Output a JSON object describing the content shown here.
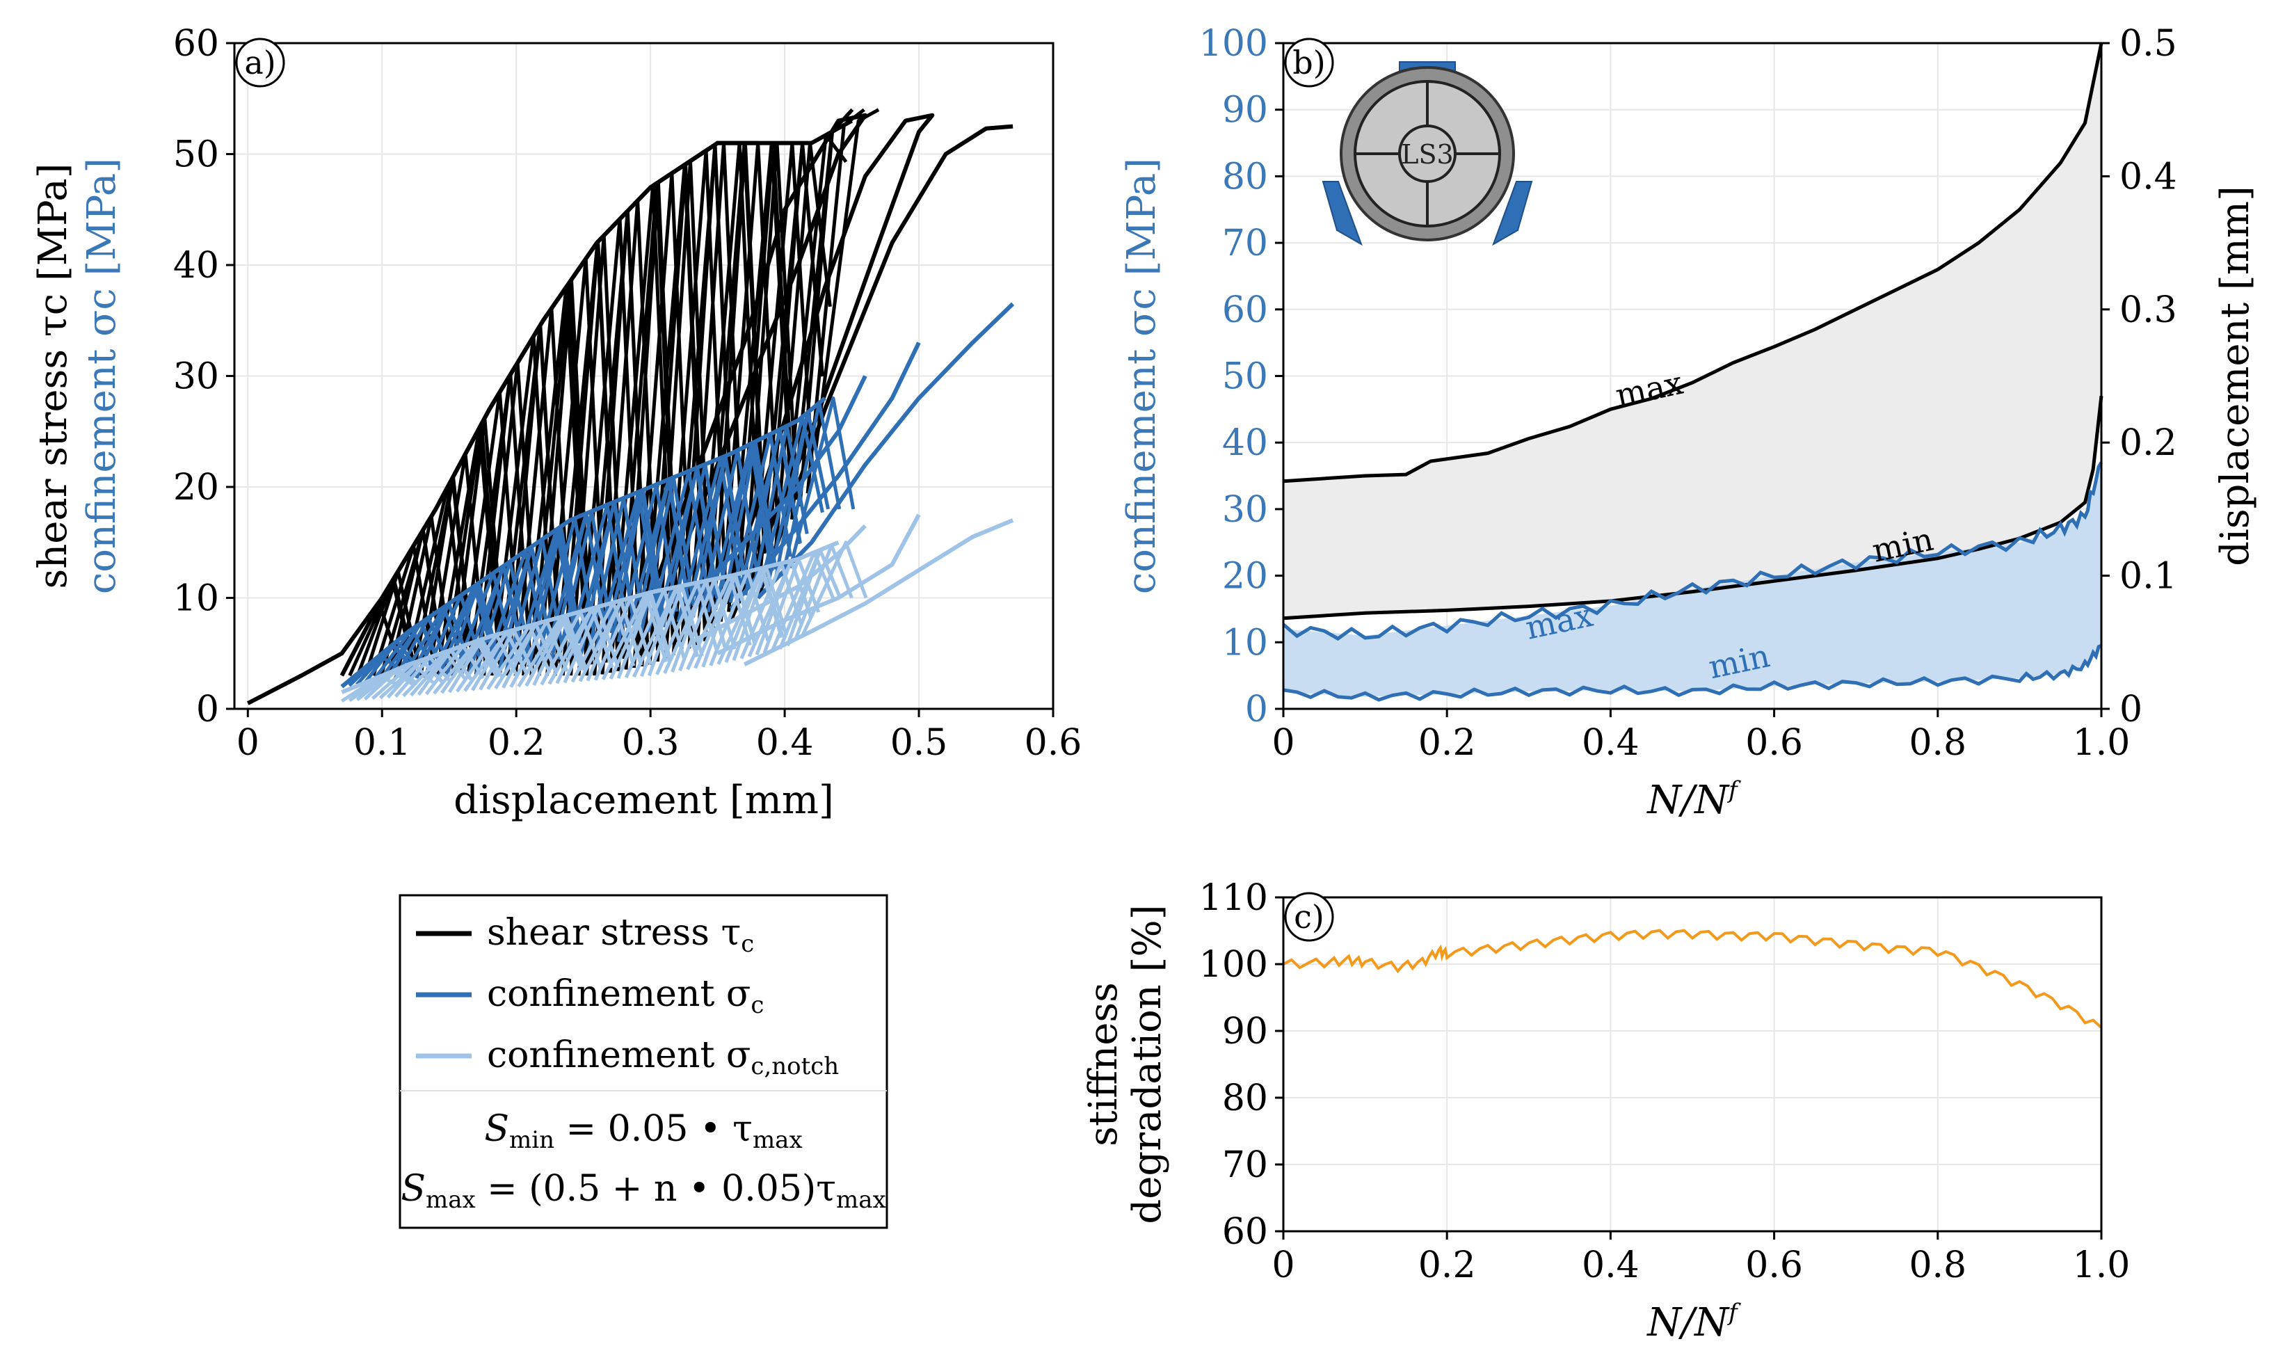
{
  "chart_data": [
    {
      "id": "a",
      "type": "line",
      "panel_label": "a)",
      "xlabel": "displacement [mm]",
      "ylabel_black": "shear stress τc [MPa]",
      "ylabel_blue": "confinement σc [MPa]",
      "xlim": [
        -0.01,
        0.6
      ],
      "ylim": [
        0,
        60
      ],
      "xticks": [
        0,
        0.1,
        0.2,
        0.3,
        0.4,
        0.5,
        0.6
      ],
      "xtick_labels": [
        "0",
        "0.1",
        "0.2",
        "0.3",
        "0.4",
        "0.5",
        "0.6"
      ],
      "yticks": [
        0,
        10,
        20,
        30,
        40,
        50,
        60
      ],
      "ytick_labels": [
        "0",
        "10",
        "20",
        "30",
        "40",
        "50",
        "60"
      ],
      "grid": true,
      "series": [
        {
          "name": "shear stress τc",
          "color": "#000000",
          "envelope_loading": [
            [
              0,
              0.5
            ],
            [
              0.04,
              3
            ],
            [
              0.07,
              5
            ],
            [
              0.1,
              10
            ],
            [
              0.14,
              18
            ],
            [
              0.18,
              27
            ],
            [
              0.22,
              35
            ],
            [
              0.26,
              42
            ],
            [
              0.3,
              47
            ],
            [
              0.35,
              51
            ],
            [
              0.38,
              51
            ]
          ],
          "cycle_upper": [
            [
              0.07,
              3
            ],
            [
              0.1,
              10
            ],
            [
              0.14,
              18
            ],
            [
              0.18,
              27
            ],
            [
              0.22,
              35
            ],
            [
              0.26,
              42
            ],
            [
              0.3,
              47
            ],
            [
              0.35,
              51
            ],
            [
              0.42,
              51
            ],
            [
              0.45,
              53
            ]
          ],
          "cycle_lower": [
            [
              0.07,
              3
            ],
            [
              0.12,
              3
            ],
            [
              0.17,
              3
            ],
            [
              0.22,
              3
            ],
            [
              0.26,
              3
            ],
            [
              0.3,
              4
            ],
            [
              0.34,
              6
            ],
            [
              0.38,
              12
            ],
            [
              0.42,
              20
            ],
            [
              0.45,
              53
            ]
          ],
          "final_curves": [
            [
              [
                0.31,
                10
              ],
              [
                0.36,
                25
              ],
              [
                0.41,
                40
              ],
              [
                0.44,
                50
              ],
              [
                0.46,
                53.5
              ],
              [
                0.44,
                53
              ],
              [
                0.4,
                45
              ],
              [
                0.37,
                33
              ],
              [
                0.33,
                20
              ],
              [
                0.3,
                10
              ]
            ],
            [
              [
                0.36,
                8
              ],
              [
                0.42,
                25
              ],
              [
                0.47,
                42
              ],
              [
                0.5,
                52
              ],
              [
                0.51,
                53.5
              ],
              [
                0.49,
                53
              ],
              [
                0.46,
                48
              ],
              [
                0.43,
                38
              ],
              [
                0.39,
                22
              ],
              [
                0.35,
                8
              ]
            ],
            [
              [
                0.38,
                10
              ],
              [
                0.43,
                27
              ],
              [
                0.48,
                42
              ],
              [
                0.52,
                50
              ],
              [
                0.55,
                52.3
              ],
              [
                0.57,
                52.5
              ]
            ]
          ]
        },
        {
          "name": "confinement σc",
          "color": "#2e6fb6",
          "cycle_upper": [
            [
              0.07,
              2
            ],
            [
              0.12,
              7
            ],
            [
              0.18,
              12
            ],
            [
              0.24,
              17
            ],
            [
              0.3,
              20
            ],
            [
              0.36,
              23
            ],
            [
              0.41,
              26
            ],
            [
              0.43,
              28
            ]
          ],
          "cycle_lower": [
            [
              0.07,
              2
            ],
            [
              0.1,
              2.5
            ],
            [
              0.15,
              3
            ],
            [
              0.2,
              3.5
            ],
            [
              0.25,
              5
            ],
            [
              0.3,
              7
            ],
            [
              0.35,
              9
            ],
            [
              0.4,
              12
            ],
            [
              0.43,
              17
            ]
          ],
          "final_curves": [
            [
              [
                0.33,
                10
              ],
              [
                0.37,
                15
              ],
              [
                0.41,
                20
              ],
              [
                0.44,
                25
              ],
              [
                0.46,
                30
              ]
            ],
            [
              [
                0.36,
                9
              ],
              [
                0.4,
                15
              ],
              [
                0.44,
                21
              ],
              [
                0.48,
                28
              ],
              [
                0.5,
                33
              ]
            ],
            [
              [
                0.38,
                10
              ],
              [
                0.42,
                15
              ],
              [
                0.46,
                22
              ],
              [
                0.5,
                28
              ],
              [
                0.54,
                33
              ],
              [
                0.57,
                36.5
              ]
            ]
          ]
        },
        {
          "name": "confinement σc,notch",
          "color": "#9fc3e7",
          "cycle_upper": [
            [
              0.07,
              1.5
            ],
            [
              0.12,
              4
            ],
            [
              0.18,
              6.5
            ],
            [
              0.24,
              8.5
            ],
            [
              0.3,
              10.5
            ],
            [
              0.36,
              12
            ],
            [
              0.41,
              13.5
            ],
            [
              0.44,
              15
            ]
          ],
          "cycle_lower": [
            [
              0.05,
              0.5
            ],
            [
              0.1,
              1
            ],
            [
              0.15,
              1.5
            ],
            [
              0.2,
              2
            ],
            [
              0.25,
              2.5
            ],
            [
              0.3,
              3
            ],
            [
              0.35,
              4
            ],
            [
              0.4,
              5.5
            ],
            [
              0.44,
              9
            ]
          ],
          "final_curves": [
            [
              [
                0.33,
                6
              ],
              [
                0.37,
                8.5
              ],
              [
                0.41,
                11
              ],
              [
                0.44,
                14
              ],
              [
                0.46,
                16.5
              ]
            ],
            [
              [
                0.35,
                5
              ],
              [
                0.4,
                8
              ],
              [
                0.44,
                10
              ],
              [
                0.48,
                13
              ],
              [
                0.5,
                17.5
              ]
            ],
            [
              [
                0.37,
                4
              ],
              [
                0.42,
                7
              ],
              [
                0.46,
                9.5
              ],
              [
                0.5,
                12.5
              ],
              [
                0.54,
                15.5
              ],
              [
                0.57,
                17
              ]
            ]
          ]
        }
      ]
    },
    {
      "id": "b",
      "type": "area",
      "panel_label": "b)",
      "xlabel_main": "N/N",
      "xlabel_sup": "f",
      "ylabel_left": "confinement σc [MPa]",
      "ylabel_right": "displacement [mm]",
      "xlim": [
        0,
        1
      ],
      "ylim_left": [
        0,
        100
      ],
      "ylim_right": [
        0,
        0.5
      ],
      "xticks": [
        0,
        0.2,
        0.4,
        0.6,
        0.8,
        1.0
      ],
      "xtick_labels": [
        "0",
        "0.2",
        "0.4",
        "0.6",
        "0.8",
        "1.0"
      ],
      "yticks_left": [
        0,
        10,
        20,
        30,
        40,
        50,
        60,
        70,
        80,
        90,
        100
      ],
      "ytick_labels_left": [
        "0",
        "10",
        "20",
        "30",
        "40",
        "50",
        "60",
        "70",
        "80",
        "90",
        "100"
      ],
      "yticks_right": [
        0,
        0.1,
        0.2,
        0.3,
        0.4,
        0.5
      ],
      "ytick_labels_right": [
        "0",
        "0.1",
        "0.2",
        "0.3",
        "0.4",
        "0.5"
      ],
      "grid": true,
      "inset_label": "LS3",
      "series": [
        {
          "name": "displacement max",
          "label": "max",
          "axis": "right",
          "color": "#000000",
          "x": [
            0,
            0.1,
            0.15,
            0.18,
            0.25,
            0.3,
            0.35,
            0.4,
            0.45,
            0.5,
            0.55,
            0.6,
            0.65,
            0.7,
            0.75,
            0.8,
            0.85,
            0.9,
            0.95,
            0.98,
            1.0
          ],
          "values": [
            0.171,
            0.175,
            0.176,
            0.186,
            0.192,
            0.203,
            0.212,
            0.225,
            0.233,
            0.245,
            0.26,
            0.272,
            0.285,
            0.3,
            0.315,
            0.33,
            0.35,
            0.375,
            0.41,
            0.44,
            0.5
          ]
        },
        {
          "name": "displacement min",
          "label": "min",
          "axis": "right",
          "color": "#000000",
          "x": [
            0,
            0.1,
            0.2,
            0.3,
            0.4,
            0.5,
            0.6,
            0.7,
            0.8,
            0.85,
            0.9,
            0.95,
            0.98,
            0.99,
            1.0
          ],
          "values": [
            0.068,
            0.072,
            0.074,
            0.077,
            0.081,
            0.088,
            0.096,
            0.104,
            0.113,
            0.12,
            0.128,
            0.14,
            0.155,
            0.18,
            0.235
          ]
        },
        {
          "name": "confinement max",
          "label": "max",
          "axis": "left",
          "color": "#2e6fb6",
          "x": [
            0,
            0.1,
            0.2,
            0.3,
            0.4,
            0.5,
            0.6,
            0.7,
            0.8,
            0.9,
            0.95,
            0.98,
            1.0
          ],
          "values": [
            12,
            11,
            12.5,
            14,
            15.5,
            18,
            20,
            22,
            23.5,
            25,
            27,
            29,
            37
          ]
        },
        {
          "name": "confinement min",
          "label": "min",
          "axis": "left",
          "color": "#2e6fb6",
          "x": [
            0,
            0.1,
            0.2,
            0.3,
            0.4,
            0.5,
            0.6,
            0.7,
            0.8,
            0.9,
            0.95,
            0.98,
            1.0
          ],
          "values": [
            2.5,
            1.8,
            2.2,
            2.6,
            2.8,
            2.6,
            3.4,
            3.8,
            4.1,
            4.6,
            5.2,
            6.5,
            9.5
          ]
        }
      ],
      "annotations": [
        {
          "text": "max",
          "color": "#000000",
          "x": 0.45,
          "y_right": 0.232
        },
        {
          "text": "min",
          "color": "#000000",
          "x": 0.76,
          "y_right": 0.115
        },
        {
          "text": "max",
          "color": "#2e6fb6",
          "x": 0.34,
          "y_left": 11.5
        },
        {
          "text": "min",
          "color": "#2e6fb6",
          "x": 0.56,
          "y_left": 5.5
        }
      ]
    },
    {
      "id": "c",
      "type": "line",
      "panel_label": "c)",
      "xlabel_main": "N/N",
      "xlabel_sup": "f",
      "ylabel_line1": "stiffness",
      "ylabel_line2": "degradation [%]",
      "xlim": [
        0,
        1
      ],
      "ylim": [
        60,
        110
      ],
      "xticks": [
        0,
        0.2,
        0.4,
        0.6,
        0.8,
        1.0
      ],
      "xtick_labels": [
        "0",
        "0.2",
        "0.4",
        "0.6",
        "0.8",
        "1.0"
      ],
      "yticks": [
        60,
        70,
        80,
        90,
        100,
        110
      ],
      "ytick_labels": [
        "60",
        "70",
        "80",
        "90",
        "100",
        "110"
      ],
      "grid": true,
      "series": [
        {
          "name": "stiffness degradation",
          "color": "#f39a1c",
          "x": [
            0,
            0.05,
            0.08,
            0.1,
            0.14,
            0.17,
            0.19,
            0.2,
            0.25,
            0.3,
            0.35,
            0.4,
            0.45,
            0.5,
            0.55,
            0.6,
            0.65,
            0.7,
            0.75,
            0.8,
            0.85,
            0.9,
            0.95,
            1.0
          ],
          "values": [
            100,
            100.2,
            100.6,
            100.3,
            99.6,
            100.3,
            102,
            101.6,
            102.3,
            103,
            103.7,
            104.3,
            104.6,
            104.6,
            104.3,
            104.3,
            103.6,
            103,
            102.3,
            102,
            99.6,
            97,
            94,
            90.5
          ]
        }
      ]
    }
  ],
  "legend": {
    "entries": [
      {
        "text": "shear stress  τ",
        "sub": "c",
        "color": "#000000"
      },
      {
        "text": "confinement  σ",
        "sub": "c",
        "color": "#2e6fb6"
      },
      {
        "text": "confinement  σ",
        "sub": "c,notch",
        "color": "#9fc3e7"
      }
    ],
    "formula1": {
      "lhs": "S",
      "lhs_sub": "min",
      "rhs": " = 0.05 • τ",
      "rhs_sub": "max"
    },
    "formula2": {
      "lhs": "S",
      "lhs_sub": "max",
      "rhs": " = (0.5 + n • 0.05)τ",
      "rhs_sub": "max"
    }
  }
}
